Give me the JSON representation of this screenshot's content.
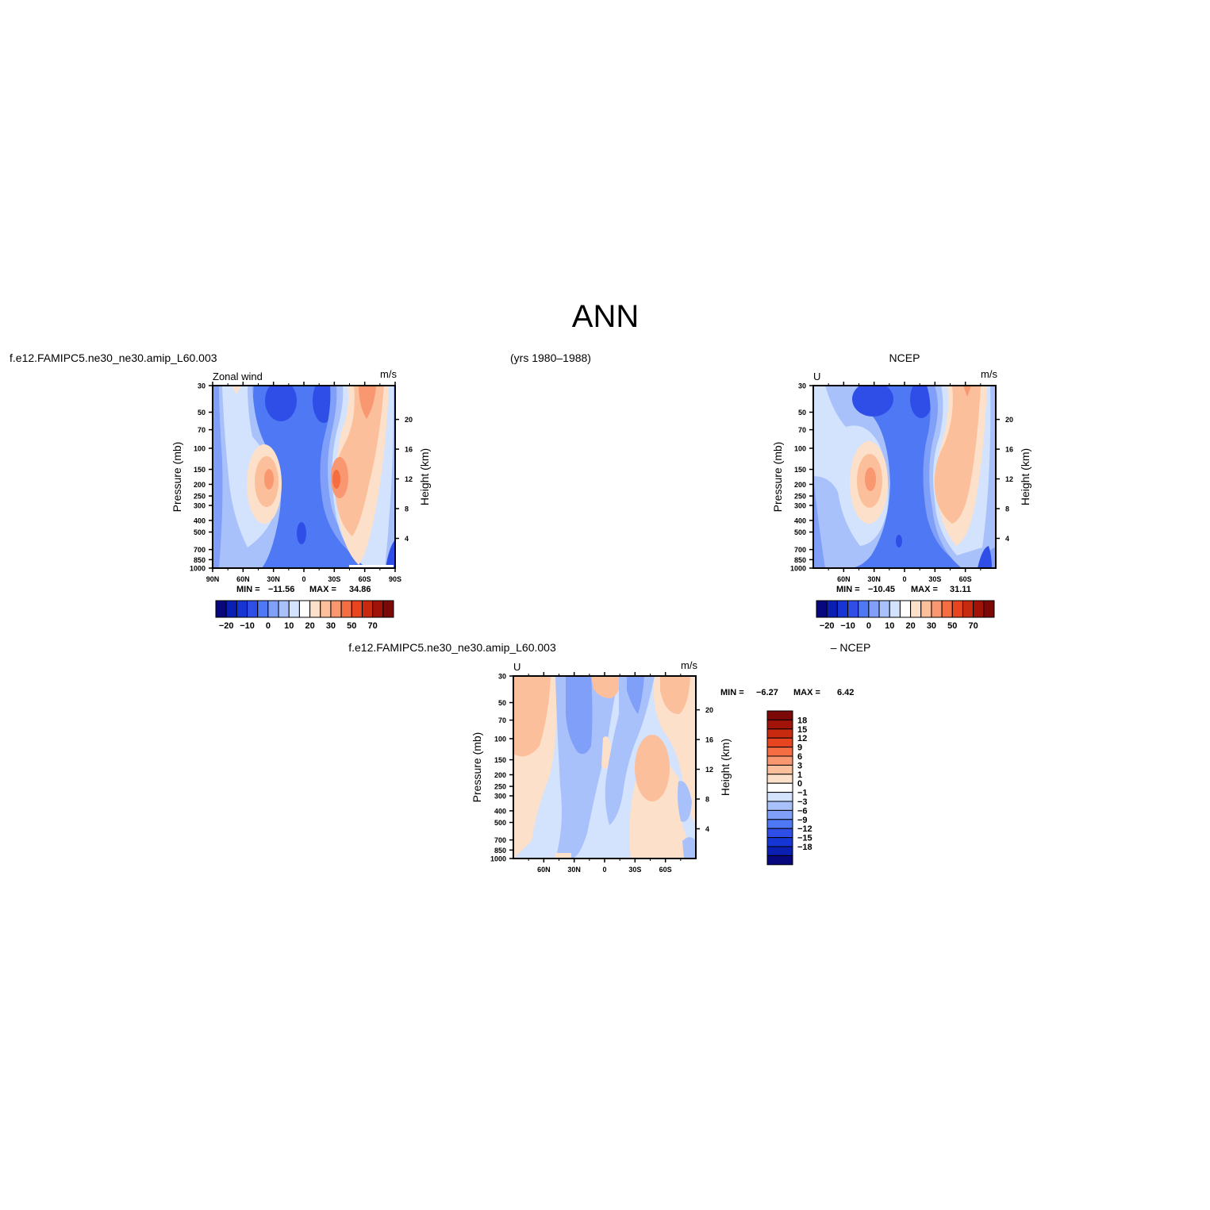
{
  "page": {
    "title": "ANN",
    "case_label": "f.e12.FAMIPC5.ne30_ne30.amip_L60.003",
    "years_label": "(yrs 1980–1988)",
    "obs_label": "NCEP",
    "diff_case_label": "f.e12.FAMIPC5.ne30_ne30.amip_L60.003",
    "diff_obs_label": "– NCEP"
  },
  "colors": {
    "field_scale": [
      "#08087e",
      "#0b1fb3",
      "#1535d4",
      "#2f4ee8",
      "#4f78f5",
      "#7f9ff8",
      "#a9c1fb",
      "#d3e2fd",
      "#ffffff",
      "#fde0c9",
      "#fcbf9b",
      "#f99870",
      "#f46d43",
      "#e64520",
      "#c82a10",
      "#a11208",
      "#7c0808"
    ],
    "diff_scale": [
      "#08087e",
      "#0b1fb3",
      "#1535d4",
      "#2f4ee8",
      "#4f78f5",
      "#7f9ff8",
      "#a9c1fb",
      "#d3e2fd",
      "#ffffff",
      "#fde0c9",
      "#fcbf9b",
      "#f99870",
      "#f46d43",
      "#e64520",
      "#c82a10",
      "#a11208",
      "#7c0808"
    ]
  },
  "chart_data": [
    {
      "type": "heatmap",
      "panel": "model",
      "title_left": "Zonal wind",
      "units": "m/s",
      "xlabel": "",
      "ylabel": "Pressure (mb)",
      "ylabel_right": "Height (km)",
      "x_ticks": [
        "90N",
        "60N",
        "30N",
        "0",
        "30S",
        "60S",
        "90S"
      ],
      "y_ticks": [
        "30",
        "50",
        "70",
        "100",
        "150",
        "200",
        "250",
        "300",
        "400",
        "500",
        "700",
        "850",
        "1000"
      ],
      "y_right_ticks": [
        "20",
        "16",
        "12",
        "8",
        "4"
      ],
      "ylim": [
        1000,
        30
      ],
      "stats": {
        "min_label": "MIN = ",
        "min": "−11.56",
        "max_label": "MAX = ",
        "max": "34.86"
      },
      "colorbar_labels": [
        "−20",
        "−10",
        "0",
        "10",
        "20",
        "30",
        "50",
        "70"
      ],
      "features": [
        {
          "lat": 32,
          "p": 200,
          "value": 25
        },
        {
          "lat": -32,
          "p": 200,
          "value": 34.86
        },
        {
          "lat": -55,
          "p": 40,
          "value": 30
        },
        {
          "lat": 0,
          "p": 300,
          "value": -11.56
        }
      ]
    },
    {
      "type": "heatmap",
      "panel": "obs",
      "title_left": "U",
      "units": "m/s",
      "xlabel": "",
      "ylabel": "Pressure (mb)",
      "ylabel_right": "Height (km)",
      "x_ticks": [
        "60N",
        "30N",
        "0",
        "30S",
        "60S"
      ],
      "y_ticks": [
        "30",
        "50",
        "70",
        "100",
        "150",
        "200",
        "250",
        "300",
        "400",
        "500",
        "700",
        "850",
        "1000"
      ],
      "y_right_ticks": [
        "20",
        "16",
        "12",
        "8",
        "4"
      ],
      "ylim": [
        1000,
        30
      ],
      "stats": {
        "min_label": "MIN = ",
        "min": "−10.45",
        "max_label": "MAX = ",
        "max": "31.11"
      },
      "colorbar_labels": [
        "−20",
        "−10",
        "0",
        "10",
        "20",
        "30",
        "50",
        "70"
      ],
      "features": [
        {
          "lat": 32,
          "p": 200,
          "value": 25
        },
        {
          "lat": -35,
          "p": 200,
          "value": 31.11
        },
        {
          "lat": 0,
          "p": 300,
          "value": -10.45
        }
      ]
    },
    {
      "type": "heatmap",
      "panel": "difference",
      "title_left": "U",
      "units": "m/s",
      "xlabel": "",
      "ylabel": "Pressure (mb)",
      "ylabel_right": "Height (km)",
      "x_ticks": [
        "60N",
        "30N",
        "0",
        "30S",
        "60S"
      ],
      "y_ticks": [
        "30",
        "50",
        "70",
        "100",
        "150",
        "200",
        "250",
        "300",
        "400",
        "500",
        "700",
        "850",
        "1000"
      ],
      "y_right_ticks": [
        "20",
        "16",
        "12",
        "8",
        "4"
      ],
      "ylim": [
        1000,
        30
      ],
      "stats": {
        "min_label": "MIN = ",
        "min": "−6.27",
        "max_label": "MAX = ",
        "max": "6.42"
      },
      "colorbar_labels": [
        "18",
        "15",
        "12",
        "9",
        "6",
        "3",
        "1",
        "0",
        "−1",
        "−3",
        "−6",
        "−9",
        "−12",
        "−15",
        "−18"
      ],
      "features": [
        {
          "lat": 75,
          "p": 50,
          "value": 3
        },
        {
          "lat": -55,
          "p": 50,
          "value": 3
        },
        {
          "lat": -35,
          "p": 200,
          "value": 3
        },
        {
          "lat": 25,
          "p": 70,
          "value": -3
        },
        {
          "lat": -20,
          "p": 150,
          "value": -3
        }
      ]
    }
  ]
}
